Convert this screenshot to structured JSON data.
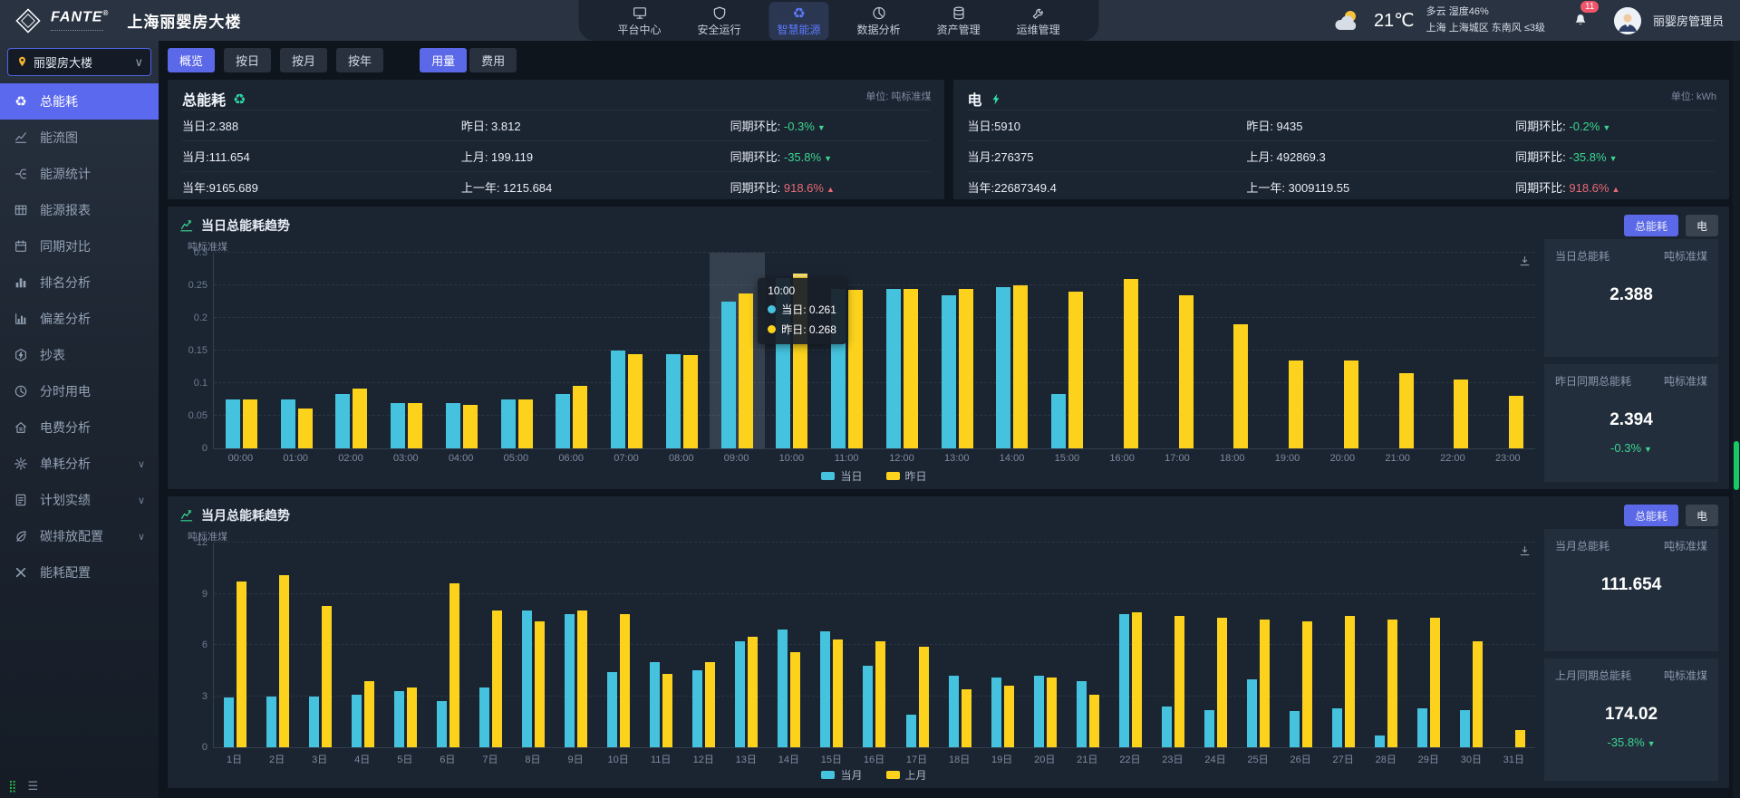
{
  "brand": {
    "logo": "FANTE",
    "reg": "®"
  },
  "header": {
    "title": "上海丽婴房大楼",
    "nav": [
      {
        "key": "platform-center",
        "label": "平台中心",
        "icon": "monitor",
        "active": false
      },
      {
        "key": "safe-operation",
        "label": "安全运行",
        "icon": "shield",
        "active": false
      },
      {
        "key": "smart-energy",
        "label": "智慧能源",
        "icon": "recycle",
        "active": true
      },
      {
        "key": "data-analysis",
        "label": "数据分析",
        "icon": "pie",
        "active": false
      },
      {
        "key": "asset-management",
        "label": "资产管理",
        "icon": "database",
        "active": false
      },
      {
        "key": "ops-management",
        "label": "运维管理",
        "icon": "wrench",
        "active": false
      }
    ],
    "weather": {
      "temp": "21℃",
      "condition": "多云",
      "humidity": "湿度46%",
      "detail": "上海 上海城区 东南风 ≤3级"
    },
    "badge_count": "11",
    "username": "丽婴房管理员"
  },
  "sidebar": {
    "selector": "丽婴房大楼",
    "items": [
      {
        "key": "total-energy",
        "label": "总能耗",
        "icon": "recycle",
        "active": true,
        "expandable": false
      },
      {
        "key": "energy-flow",
        "label": "能流图",
        "icon": "flow",
        "active": false,
        "expandable": false
      },
      {
        "key": "energy-stats",
        "label": "能源统计",
        "icon": "stats",
        "active": false,
        "expandable": false
      },
      {
        "key": "energy-report",
        "label": "能源报表",
        "icon": "table",
        "active": false,
        "expandable": false
      },
      {
        "key": "period-compare",
        "label": "同期对比",
        "icon": "calendar",
        "active": false,
        "expandable": false
      },
      {
        "key": "ranking-analysis",
        "label": "排名分析",
        "icon": "ranking",
        "active": false,
        "expandable": false
      },
      {
        "key": "deviation-analysis",
        "label": "偏差分析",
        "icon": "deviation",
        "active": false,
        "expandable": false
      },
      {
        "key": "meter-reading",
        "label": "抄表",
        "icon": "meter",
        "active": false,
        "expandable": false
      },
      {
        "key": "tou-power",
        "label": "分时用电",
        "icon": "clock",
        "active": false,
        "expandable": false
      },
      {
        "key": "cost-analysis",
        "label": "电费分析",
        "icon": "home",
        "active": false,
        "expandable": false
      },
      {
        "key": "unit-analysis",
        "label": "单耗分析",
        "icon": "atom",
        "active": false,
        "expandable": true
      },
      {
        "key": "plan-actual",
        "label": "计划实绩",
        "icon": "doc",
        "active": false,
        "expandable": true
      },
      {
        "key": "carbon-config",
        "label": "碳排放配置",
        "icon": "leaf",
        "active": false,
        "expandable": true
      },
      {
        "key": "energy-config",
        "label": "能耗配置",
        "icon": "tools",
        "active": false,
        "expandable": false
      }
    ]
  },
  "tabs": {
    "period": [
      {
        "key": "overview",
        "label": "概览",
        "active": true
      },
      {
        "key": "by-day",
        "label": "按日",
        "active": false
      },
      {
        "key": "by-month",
        "label": "按月",
        "active": false
      },
      {
        "key": "by-year",
        "label": "按年",
        "active": false
      }
    ],
    "mode": [
      {
        "key": "usage",
        "label": "用量",
        "active": true
      },
      {
        "key": "cost",
        "label": "费用",
        "active": false
      }
    ]
  },
  "cards": [
    {
      "key": "total-energy",
      "title": "总能耗",
      "icon": "recycle",
      "unit": "单位: 吨标准煤",
      "rows": [
        {
          "c1": "当日:2.388",
          "c2": "昨日: 3.812",
          "c3_label": "同期环比:",
          "pct": "-0.3%",
          "trend": "down"
        },
        {
          "c1": "当月:111.654",
          "c2": "上月: 199.119",
          "c3_label": "同期环比:",
          "pct": "-35.8%",
          "trend": "down"
        },
        {
          "c1": "当年:9165.689",
          "c2": "上一年: 1215.684",
          "c3_label": "同期环比:",
          "pct": "918.6%",
          "trend": "up"
        }
      ]
    },
    {
      "key": "electricity",
      "title": "电",
      "icon": "bolt",
      "unit": "单位: kWh",
      "rows": [
        {
          "c1": "当日:5910",
          "c2": "昨日: 9435",
          "c3_label": "同期环比:",
          "pct": "-0.2%",
          "trend": "down"
        },
        {
          "c1": "当月:276375",
          "c2": "上月: 492869.3",
          "c3_label": "同期环比:",
          "pct": "-35.8%",
          "trend": "down"
        },
        {
          "c1": "当年:22687349.4",
          "c2": "上一年: 3009119.55",
          "c3_label": "同期环比:",
          "pct": "918.6%",
          "trend": "up"
        }
      ]
    }
  ],
  "charts": [
    {
      "key": "daily-trend",
      "title": "当日总能耗趋势",
      "btn_primary": "总能耗",
      "btn_secondary": "电",
      "summary": [
        {
          "label": "当日总能耗",
          "unit": "吨标准煤",
          "value": "2.388",
          "pct": null,
          "trend": null
        },
        {
          "label": "昨日同期总能耗",
          "unit": "吨标准煤",
          "value": "2.394",
          "pct": "-0.3%",
          "trend": "down"
        }
      ]
    },
    {
      "key": "monthly-trend",
      "title": "当月总能耗趋势",
      "btn_primary": "总能耗",
      "btn_secondary": "电",
      "summary": [
        {
          "label": "当月总能耗",
          "unit": "吨标准煤",
          "value": "111.654",
          "pct": null,
          "trend": null
        },
        {
          "label": "上月同期总能耗",
          "unit": "吨标准煤",
          "value": "174.02",
          "pct": "-35.8%",
          "trend": "down"
        }
      ]
    }
  ],
  "chart_data": [
    {
      "type": "bar",
      "title": "当日总能耗趋势",
      "xlabel": "",
      "ylabel": "吨标准煤",
      "ylim": [
        0,
        0.3
      ],
      "ytick": 0.05,
      "grid": "dashed",
      "legend_position": "bottom",
      "categories": [
        "00:00",
        "01:00",
        "02:00",
        "03:00",
        "04:00",
        "05:00",
        "06:00",
        "07:00",
        "08:00",
        "09:00",
        "10:00",
        "11:00",
        "12:00",
        "13:00",
        "14:00",
        "15:00",
        "16:00",
        "17:00",
        "18:00",
        "19:00",
        "20:00",
        "21:00",
        "22:00",
        "23:00"
      ],
      "series": [
        {
          "name": "当日",
          "color": "#45c2dd",
          "values": [
            0.075,
            0.075,
            0.084,
            0.07,
            0.07,
            0.075,
            0.084,
            0.15,
            0.145,
            0.225,
            0.261,
            0.245,
            0.245,
            0.235,
            0.247,
            0.083,
            null,
            null,
            null,
            null,
            null,
            null,
            null,
            null
          ]
        },
        {
          "name": "昨日",
          "color": "#fcd21c",
          "values": [
            0.075,
            0.061,
            0.091,
            0.07,
            0.066,
            0.075,
            0.096,
            0.145,
            0.143,
            0.238,
            0.268,
            0.243,
            0.245,
            0.245,
            0.25,
            0.24,
            0.26,
            0.235,
            0.19,
            0.135,
            0.135,
            0.115,
            0.105,
            0.08
          ]
        }
      ],
      "hover": {
        "band_index": 9,
        "tooltip_index": 10,
        "emphasis_index": 10,
        "title": "10:00",
        "rows": [
          {
            "name": "当日",
            "value": "0.261"
          },
          {
            "name": "昨日",
            "value": "0.268"
          }
        ]
      }
    },
    {
      "type": "bar",
      "title": "当月总能耗趋势",
      "xlabel": "",
      "ylabel": "吨标准煤",
      "ylim": [
        0,
        12
      ],
      "ytick": 3,
      "grid": "dashed",
      "legend_position": "bottom",
      "categories": [
        "1日",
        "2日",
        "3日",
        "4日",
        "5日",
        "6日",
        "7日",
        "8日",
        "9日",
        "10日",
        "11日",
        "12日",
        "13日",
        "14日",
        "15日",
        "16日",
        "17日",
        "18日",
        "19日",
        "20日",
        "21日",
        "22日",
        "23日",
        "24日",
        "25日",
        "26日",
        "27日",
        "28日",
        "29日",
        "30日",
        "31日"
      ],
      "series": [
        {
          "name": "当月",
          "color": "#45c2dd",
          "values": [
            2.9,
            3.0,
            3.0,
            3.1,
            3.3,
            2.7,
            3.5,
            8.0,
            7.8,
            4.4,
            5.0,
            4.5,
            6.2,
            6.9,
            6.8,
            4.8,
            1.9,
            4.2,
            4.1,
            4.2,
            3.9,
            7.8,
            2.4,
            2.2,
            4.0,
            2.1,
            2.3,
            0.7,
            2.3,
            2.2,
            null
          ]
        },
        {
          "name": "上月",
          "color": "#fcd21c",
          "values": [
            9.7,
            10.1,
            8.3,
            3.9,
            3.5,
            9.6,
            8.0,
            7.4,
            8.0,
            7.8,
            4.3,
            5.0,
            6.5,
            5.6,
            6.3,
            6.2,
            5.9,
            3.4,
            3.6,
            4.1,
            3.1,
            7.9,
            7.7,
            7.6,
            7.5,
            7.4,
            7.7,
            7.5,
            7.6,
            6.2,
            1.0
          ]
        }
      ],
      "hover": null
    }
  ],
  "colors": {
    "primary": "#5b68e8",
    "cyan": "#45c2dd",
    "yellow": "#fcd21c",
    "green": "#3bd68f",
    "red": "#e86a75"
  }
}
